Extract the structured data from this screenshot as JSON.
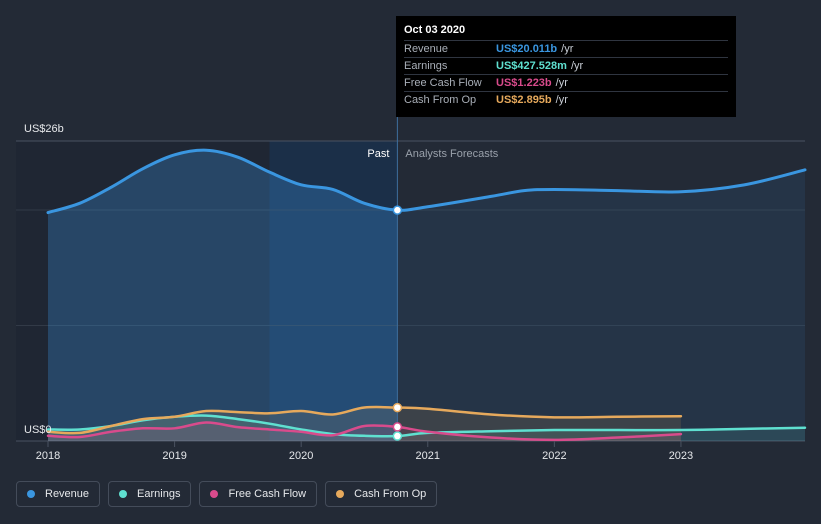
{
  "chart_data": {
    "type": "line",
    "title": "",
    "y_axis": {
      "top_label": "US$26b",
      "bottom_label": "US$0",
      "ylim": [
        0,
        26
      ]
    },
    "x_axis": {
      "ticks": [
        "2018",
        "2019",
        "2020",
        "2021",
        "2022",
        "2023"
      ],
      "xlim": [
        2018.0,
        2023.98
      ]
    },
    "past_label": "Past",
    "forecast_label": "Analysts Forecasts",
    "divider_x": 2020.76,
    "highlight_start_x": 2019.75,
    "series": [
      {
        "name": "Revenue",
        "color": "#3a96e0",
        "fill": true,
        "x": [
          2018.0,
          2018.25,
          2018.5,
          2018.75,
          2019.0,
          2019.25,
          2019.5,
          2019.75,
          2020.0,
          2020.25,
          2020.5,
          2020.76,
          2021.0,
          2021.5,
          2021.76,
          2022.0,
          2022.5,
          2023.0,
          2023.5,
          2023.98
        ],
        "values": [
          19.8,
          20.6,
          22.0,
          23.6,
          24.8,
          25.2,
          24.6,
          23.3,
          22.2,
          21.8,
          20.6,
          20.01,
          20.3,
          21.2,
          21.7,
          21.8,
          21.7,
          21.6,
          22.2,
          23.5
        ]
      },
      {
        "name": "Earnings",
        "color": "#5fe0d0",
        "fill": false,
        "x": [
          2018.0,
          2018.25,
          2018.5,
          2018.75,
          2019.0,
          2019.25,
          2019.5,
          2019.75,
          2020.0,
          2020.25,
          2020.5,
          2020.76,
          2021.0,
          2021.5,
          2022.0,
          2022.5,
          2023.0,
          2023.5,
          2023.98
        ],
        "values": [
          1.0,
          1.0,
          1.3,
          1.8,
          2.1,
          2.2,
          1.9,
          1.5,
          1.0,
          0.6,
          0.45,
          0.43,
          0.7,
          0.85,
          0.95,
          0.95,
          0.95,
          1.05,
          1.15
        ]
      },
      {
        "name": "Free Cash Flow",
        "color": "#d94b8c",
        "fill": false,
        "x": [
          2018.0,
          2018.25,
          2018.5,
          2018.75,
          2019.0,
          2019.25,
          2019.5,
          2019.75,
          2020.0,
          2020.25,
          2020.5,
          2020.76,
          2021.0,
          2021.5,
          2022.0,
          2022.5,
          2023.0
        ],
        "values": [
          0.45,
          0.35,
          0.8,
          1.1,
          1.1,
          1.6,
          1.2,
          1.0,
          0.8,
          0.5,
          1.3,
          1.22,
          0.8,
          0.3,
          0.1,
          0.3,
          0.6
        ]
      },
      {
        "name": "Cash From Op",
        "color": "#e6a95c",
        "fill": false,
        "x": [
          2018.0,
          2018.25,
          2018.5,
          2018.75,
          2019.0,
          2019.25,
          2019.5,
          2019.75,
          2020.0,
          2020.25,
          2020.5,
          2020.76,
          2021.0,
          2021.5,
          2022.0,
          2022.5,
          2023.0
        ],
        "values": [
          0.8,
          0.7,
          1.3,
          1.9,
          2.1,
          2.6,
          2.5,
          2.4,
          2.6,
          2.3,
          2.9,
          2.895,
          2.8,
          2.3,
          2.05,
          2.1,
          2.15
        ]
      }
    ]
  },
  "tooltip": {
    "date": "Oct 03 2020",
    "rows": [
      {
        "name": "Revenue",
        "value": "US$20.011b",
        "unit": "/yr",
        "color": "#3a96e0"
      },
      {
        "name": "Earnings",
        "value": "US$427.528m",
        "unit": "/yr",
        "color": "#5fe0d0"
      },
      {
        "name": "Free Cash Flow",
        "value": "US$1.223b",
        "unit": "/yr",
        "color": "#d94b8c"
      },
      {
        "name": "Cash From Op",
        "value": "US$2.895b",
        "unit": "/yr",
        "color": "#e6a95c"
      }
    ]
  },
  "legend": [
    {
      "label": "Revenue",
      "color": "#3a96e0"
    },
    {
      "label": "Earnings",
      "color": "#5fe0d0"
    },
    {
      "label": "Free Cash Flow",
      "color": "#d94b8c"
    },
    {
      "label": "Cash From Op",
      "color": "#e6a95c"
    }
  ]
}
